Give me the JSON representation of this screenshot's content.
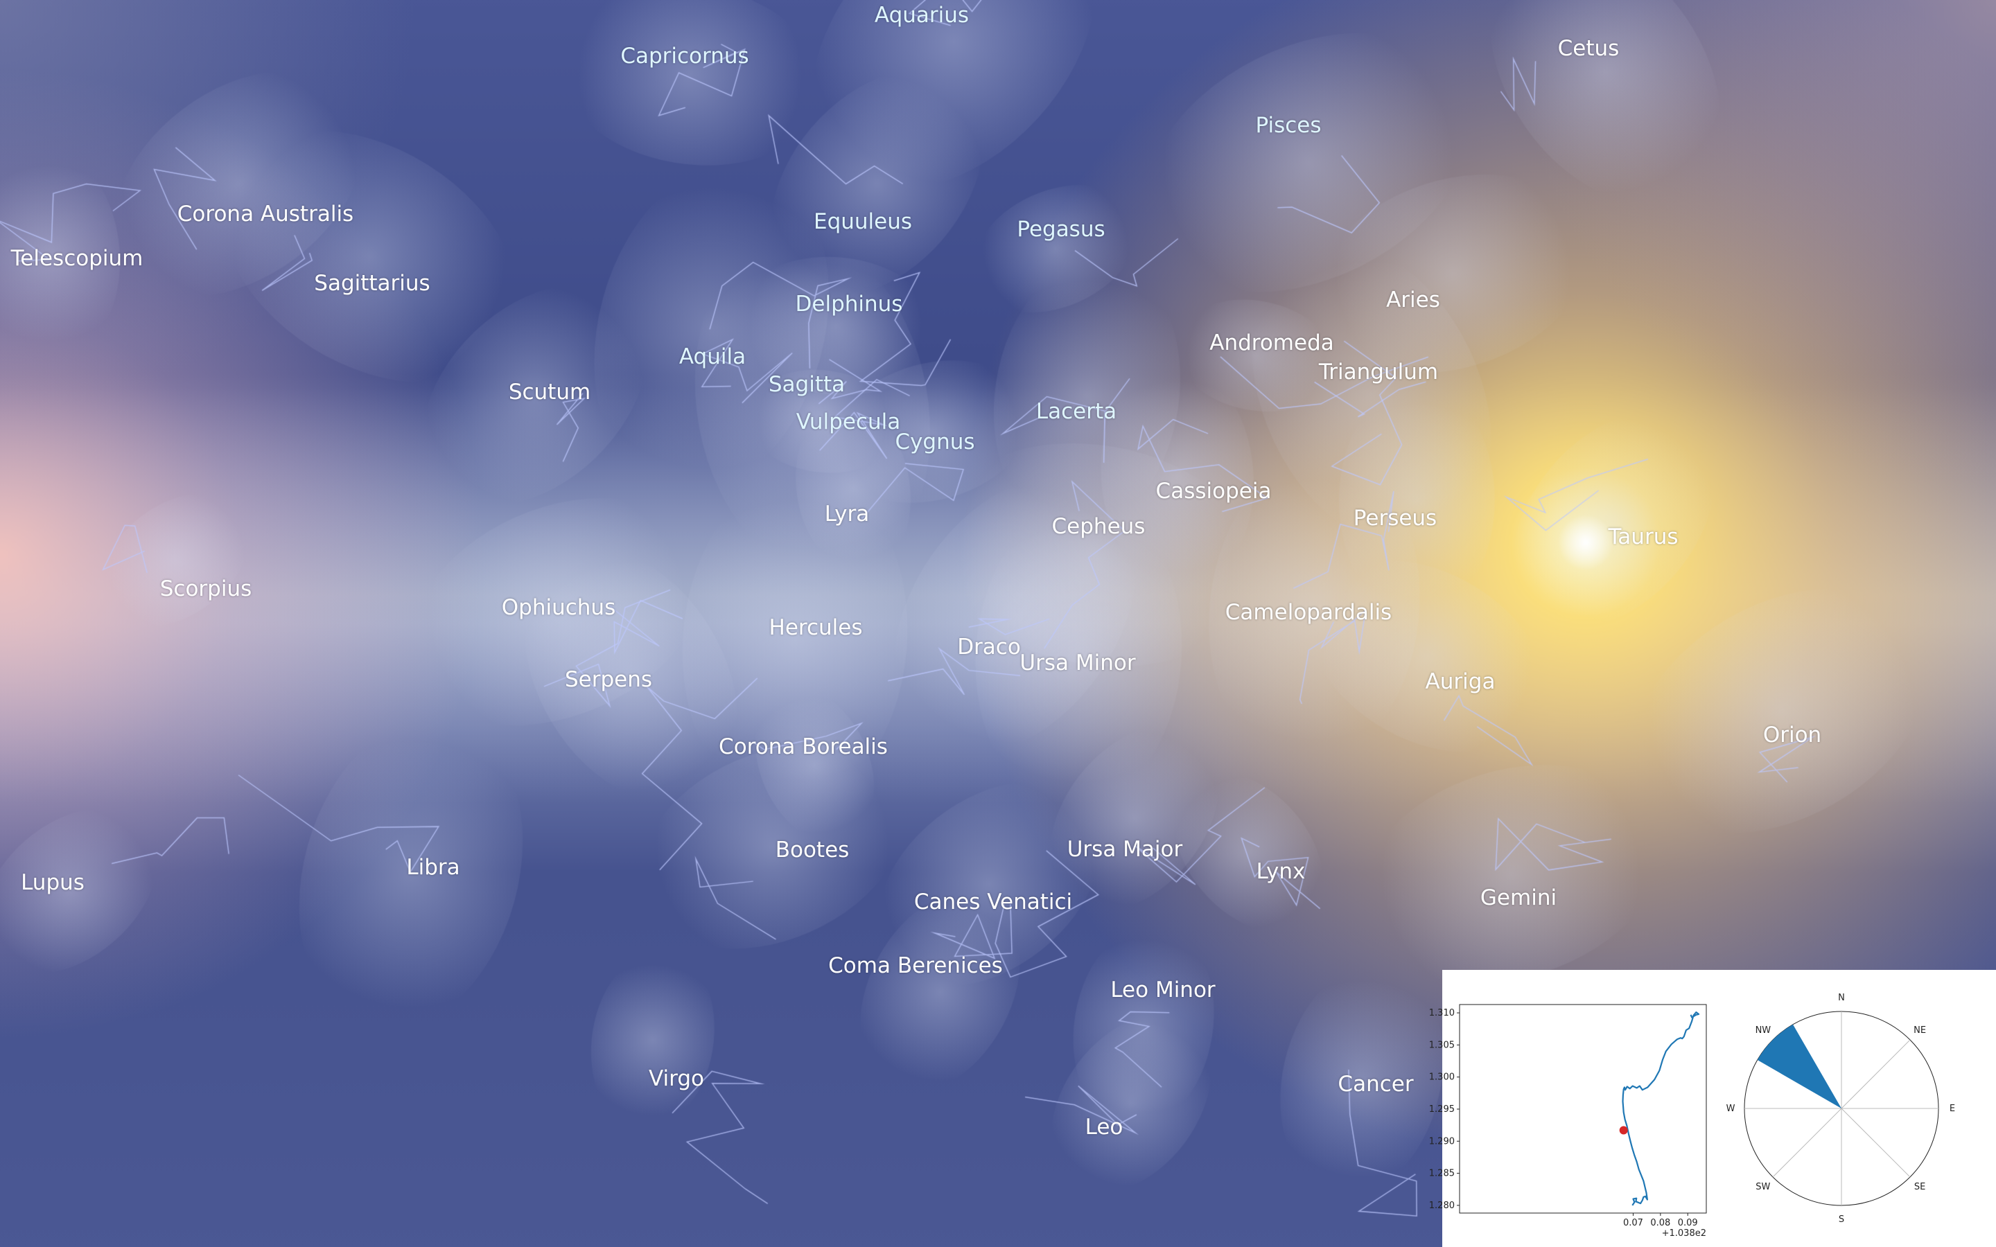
{
  "constellations": [
    {
      "name": "Aquarius",
      "x": 1330,
      "y": 22,
      "color": "#dff6ff"
    },
    {
      "name": "Capricornus",
      "x": 988,
      "y": 81,
      "color": "#dff6ff"
    },
    {
      "name": "Cetus",
      "x": 2292,
      "y": 70,
      "color": "#ffffff"
    },
    {
      "name": "Pisces",
      "x": 1859,
      "y": 181,
      "color": "#dff6ff"
    },
    {
      "name": "Corona Australis",
      "x": 383,
      "y": 309,
      "color": "#ffffff"
    },
    {
      "name": "Telescopium",
      "x": 111,
      "y": 373,
      "color": "#ffffff"
    },
    {
      "name": "Equuleus",
      "x": 1245,
      "y": 320,
      "color": "#dff6ff"
    },
    {
      "name": "Pegasus",
      "x": 1531,
      "y": 331,
      "color": "#dff6ff"
    },
    {
      "name": "Sagittarius",
      "x": 537,
      "y": 409,
      "color": "#ffffff"
    },
    {
      "name": "Delphinus",
      "x": 1225,
      "y": 439,
      "color": "#dff6ff"
    },
    {
      "name": "Aries",
      "x": 2039,
      "y": 433,
      "color": "#ffffff"
    },
    {
      "name": "Andromeda",
      "x": 1835,
      "y": 495,
      "color": "#ffffff"
    },
    {
      "name": "Triangulum",
      "x": 1989,
      "y": 537,
      "color": "#ffffff"
    },
    {
      "name": "Aquila",
      "x": 1028,
      "y": 515,
      "color": "#dff6ff"
    },
    {
      "name": "Scutum",
      "x": 793,
      "y": 566,
      "color": "#ffffff"
    },
    {
      "name": "Sagitta",
      "x": 1164,
      "y": 555,
      "color": "#dff6ff"
    },
    {
      "name": "Lacerta",
      "x": 1553,
      "y": 594,
      "color": "#dff6ff"
    },
    {
      "name": "Vulpecula",
      "x": 1224,
      "y": 609,
      "color": "#dff6ff"
    },
    {
      "name": "Cygnus",
      "x": 1349,
      "y": 638,
      "color": "#dff6ff"
    },
    {
      "name": "Cassiopeia",
      "x": 1751,
      "y": 709,
      "color": "#ffffff"
    },
    {
      "name": "Lyra",
      "x": 1222,
      "y": 742,
      "color": "#ffffff"
    },
    {
      "name": "Perseus",
      "x": 2013,
      "y": 748,
      "color": "#ffffff"
    },
    {
      "name": "Cepheus",
      "x": 1585,
      "y": 760,
      "color": "#ffffff"
    },
    {
      "name": "Taurus",
      "x": 2371,
      "y": 775,
      "color": "#ffffff"
    },
    {
      "name": "Scorpius",
      "x": 297,
      "y": 850,
      "color": "#ffffff"
    },
    {
      "name": "Ophiuchus",
      "x": 806,
      "y": 877,
      "color": "#ffffff"
    },
    {
      "name": "Camelopardalis",
      "x": 1888,
      "y": 884,
      "color": "#ffffff"
    },
    {
      "name": "Hercules",
      "x": 1177,
      "y": 906,
      "color": "#ffffff"
    },
    {
      "name": "Draco",
      "x": 1427,
      "y": 934,
      "color": "#ffffff"
    },
    {
      "name": "Ursa Minor",
      "x": 1555,
      "y": 957,
      "color": "#ffffff"
    },
    {
      "name": "Serpens",
      "x": 878,
      "y": 981,
      "color": "#ffffff"
    },
    {
      "name": "Auriga",
      "x": 2107,
      "y": 984,
      "color": "#ffffff"
    },
    {
      "name": "Corona Borealis",
      "x": 1159,
      "y": 1078,
      "color": "#ffffff"
    },
    {
      "name": "Orion",
      "x": 2586,
      "y": 1061,
      "color": "#ffffff"
    },
    {
      "name": "Bootes",
      "x": 1172,
      "y": 1227,
      "color": "#ffffff"
    },
    {
      "name": "Ursa Major",
      "x": 1623,
      "y": 1226,
      "color": "#ffffff"
    },
    {
      "name": "Lupus",
      "x": 76,
      "y": 1274,
      "color": "#ffffff"
    },
    {
      "name": "Libra",
      "x": 625,
      "y": 1252,
      "color": "#ffffff"
    },
    {
      "name": "Lynx",
      "x": 1848,
      "y": 1258,
      "color": "#ffffff"
    },
    {
      "name": "Canes Venatici",
      "x": 1433,
      "y": 1302,
      "color": "#ffffff"
    },
    {
      "name": "Gemini",
      "x": 2191,
      "y": 1296,
      "color": "#ffffff"
    },
    {
      "name": "Coma Berenices",
      "x": 1321,
      "y": 1394,
      "color": "#ffffff"
    },
    {
      "name": "Leo Minor",
      "x": 1678,
      "y": 1429,
      "color": "#ffffff"
    },
    {
      "name": "Virgo",
      "x": 976,
      "y": 1557,
      "color": "#ffffff"
    },
    {
      "name": "Cancer",
      "x": 1985,
      "y": 1565,
      "color": "#ffffff"
    },
    {
      "name": "Leo",
      "x": 1593,
      "y": 1627,
      "color": "#ffffff"
    }
  ],
  "sun": {
    "x": 2288,
    "y": 783
  },
  "colors": {
    "track": "#1f77b4",
    "marker": "#d62728",
    "sector": "#1f77b4"
  },
  "chart_data": [
    {
      "type": "line",
      "title": "",
      "xlabel": "",
      "ylabel": "",
      "xlim": [
        103.8064,
        103.8968
      ],
      "ylim": [
        1.2788,
        1.3113
      ],
      "x_ticks": [
        103.87,
        103.88,
        103.89
      ],
      "x_tick_labels": [
        "0.07",
        "0.08",
        "0.09"
      ],
      "x_offset_label": "+1.038e2",
      "y_ticks": [
        1.28,
        1.285,
        1.29,
        1.295,
        1.3,
        1.305,
        1.31
      ],
      "y_tick_labels": [
        "1.280",
        "1.285",
        "1.290",
        "1.295",
        "1.300",
        "1.305",
        "1.310"
      ],
      "series": [
        {
          "x": [
            103.8697,
            103.8705,
            103.87,
            103.8712,
            103.871,
            103.8727,
            103.8734,
            103.8738,
            103.8745,
            103.8752,
            103.8748,
            103.8738,
            103.8721,
            103.8713,
            103.8704,
            103.8696,
            103.869,
            103.8683,
            103.8677,
            103.867,
            103.8665,
            103.8662,
            103.8663,
            103.8665,
            103.8668,
            103.8671,
            103.8678,
            103.8688,
            103.8698,
            103.8713,
            103.8724,
            103.8734,
            103.8753,
            103.8778,
            103.8796,
            103.8808,
            103.882,
            103.884,
            103.8856,
            103.8862,
            103.8874,
            103.888,
            103.8886,
            103.8894,
            103.8905,
            103.8915,
            103.8921,
            103.8931,
            103.894,
            103.8931,
            103.8915,
            103.8911
          ],
          "y": [
            1.28,
            1.2805,
            1.281,
            1.2811,
            1.2806,
            1.2803,
            1.2808,
            1.2813,
            1.2814,
            1.2809,
            1.282,
            1.2838,
            1.2856,
            1.2868,
            1.2879,
            1.289,
            1.29,
            1.2912,
            1.2924,
            1.2934,
            1.2945,
            1.2962,
            1.2972,
            1.2981,
            1.2984,
            1.298,
            1.2985,
            1.2982,
            1.2986,
            1.2983,
            1.2986,
            1.298,
            1.2984,
            1.2996,
            1.301,
            1.3027,
            1.304,
            1.3051,
            1.3057,
            1.3059,
            1.3061,
            1.306,
            1.3063,
            1.3073,
            1.3076,
            1.3087,
            1.3096,
            1.3101,
            1.3098,
            1.3097,
            1.3093,
            1.3097
          ]
        }
      ],
      "marker": {
        "x": 103.8665,
        "y": 1.2917
      }
    },
    {
      "type": "polar-bar",
      "directions": [
        "N",
        "NE",
        "E",
        "SE",
        "S",
        "SW",
        "W",
        "NW"
      ],
      "sector_start_deg": 300,
      "sector_end_deg": 330,
      "radial_extent": 1.0
    }
  ]
}
